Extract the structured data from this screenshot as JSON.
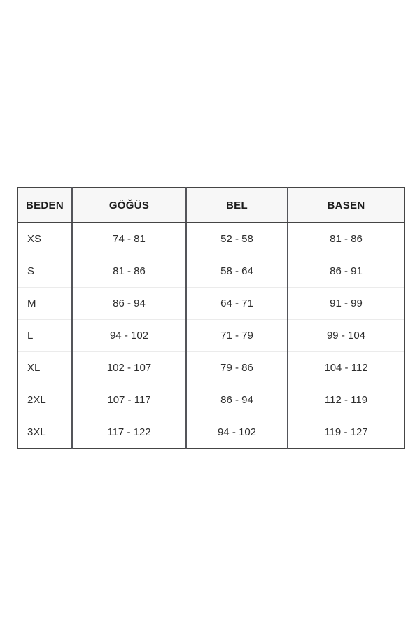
{
  "page": {
    "background": "#ffffff"
  },
  "size_chart": {
    "columns": [
      "BEDEN",
      "GÖĞÜS",
      "BEL",
      "BASEN"
    ],
    "rows": [
      {
        "beden": "XS",
        "gogus": "74 - 81",
        "bel": "52 - 58",
        "basen": "81 - 86"
      },
      {
        "beden": "S",
        "gogus": "81 - 86",
        "bel": "58 - 64",
        "basen": "86 - 91"
      },
      {
        "beden": "M",
        "gogus": "86 - 94",
        "bel": "64 - 71",
        "basen": "91 - 99"
      },
      {
        "beden": "L",
        "gogus": "94 - 102",
        "bel": "71 - 79",
        "basen": "99 - 104"
      },
      {
        "beden": "XL",
        "gogus": "102 - 107",
        "bel": "79 - 86",
        "basen": "104 - 112"
      },
      {
        "beden": "2XL",
        "gogus": "107 - 117",
        "bel": "86 - 94",
        "basen": "112 - 119"
      },
      {
        "beden": "3XL",
        "gogus": "117 - 122",
        "bel": "94 - 102",
        "basen": "119 - 127"
      }
    ],
    "colors": {
      "border_dark": "#454545",
      "column_divider": "#54555a",
      "row_separator": "#ebebeb",
      "header_bg": "#f7f7f7",
      "header_text": "#1c1c1c",
      "cell_text": "#2e2e2e",
      "background": "#ffffff"
    }
  }
}
